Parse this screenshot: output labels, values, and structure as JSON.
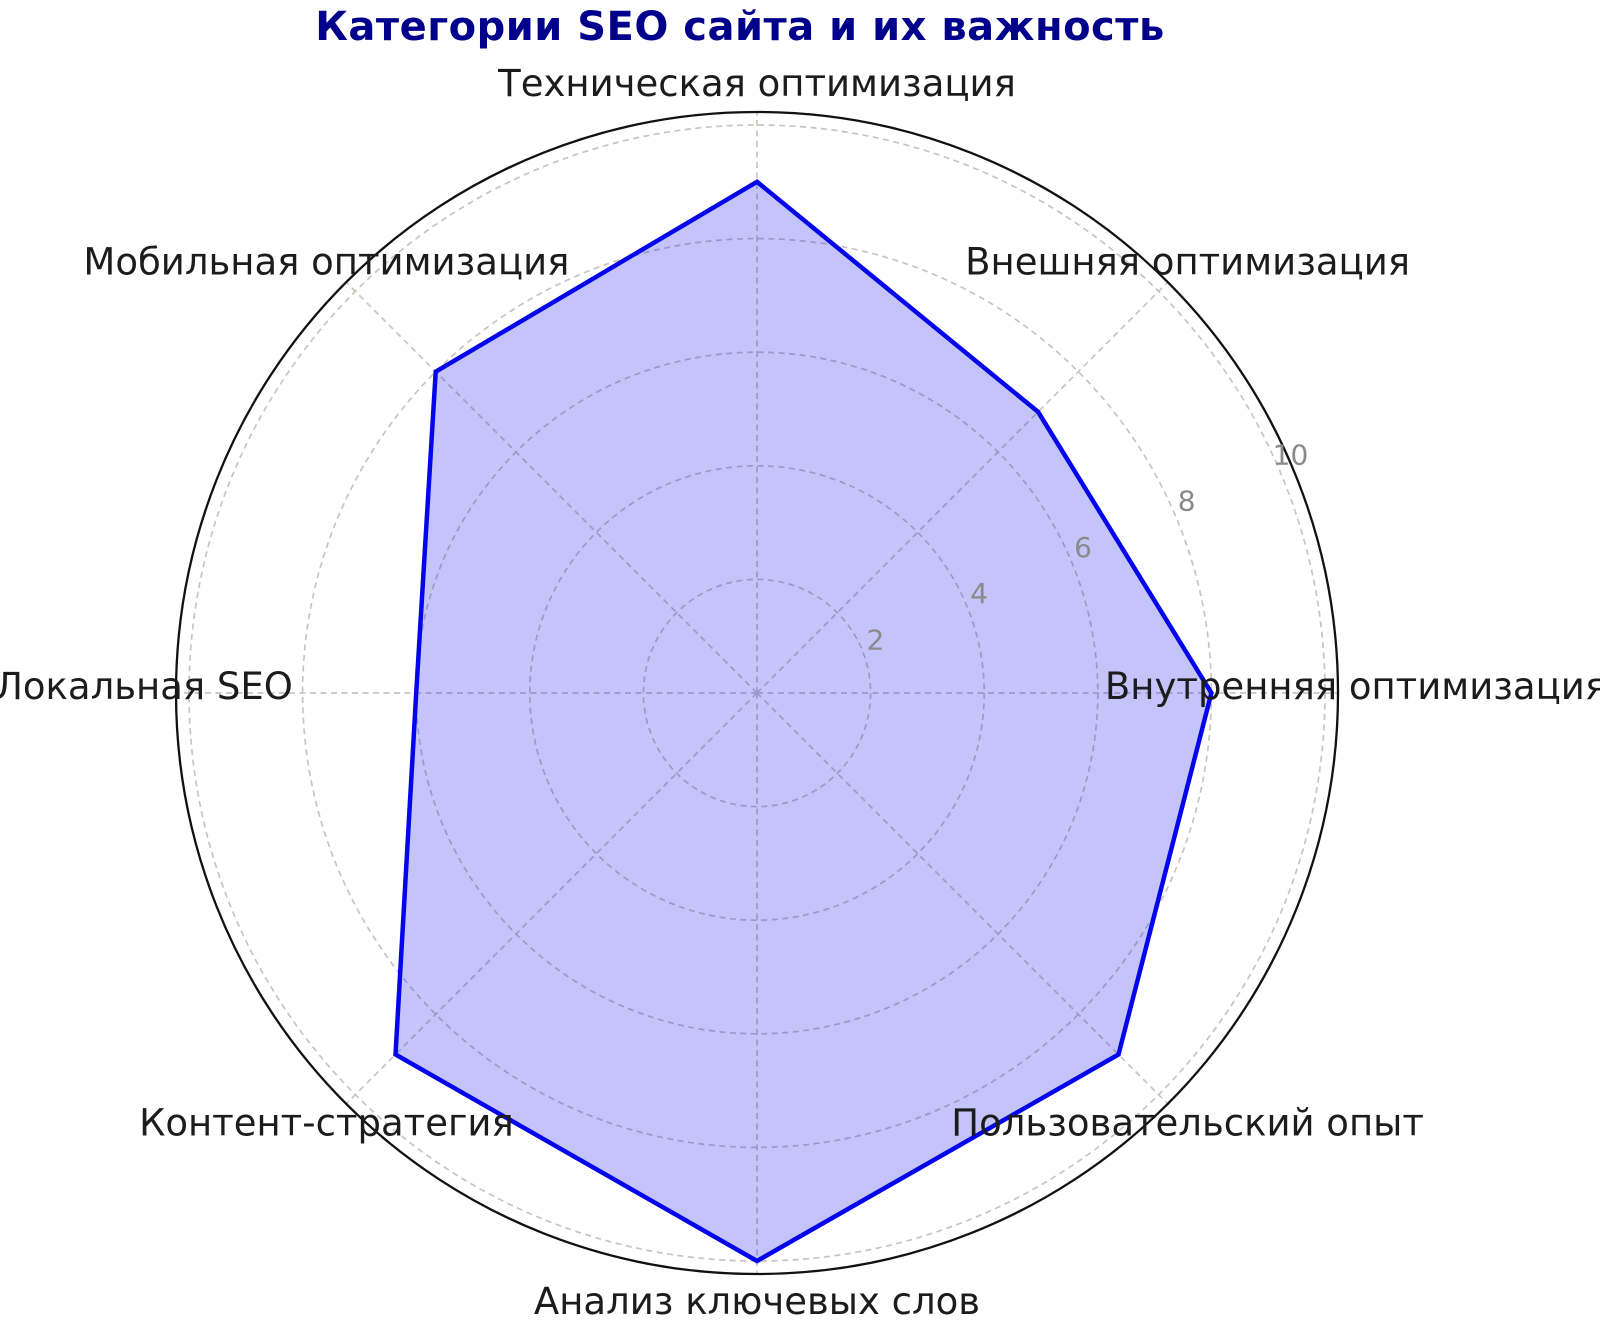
{
  "chart_data": {
    "type": "radar",
    "title": "Категории SEO сайта и их важность",
    "categories": [
      "Техническая оптимизация",
      "Внешняя оптимизация",
      "Внутренняя оптимизация",
      "Пользовательский опыт",
      "Анализ ключевых слов",
      "Контент-стратегия",
      "Локальная SEO",
      "Мобильная оптимизация"
    ],
    "values": [
      9,
      7,
      8,
      9,
      10,
      9,
      6,
      8
    ],
    "radial_ticks": [
      2,
      4,
      6,
      8,
      10
    ],
    "r_min": 0,
    "r_max": 10.25,
    "start_angle_deg": 90,
    "direction": "clockwise",
    "grid": "dashed",
    "legend": "none",
    "colors": {
      "title": "#00008B",
      "line": "#0505ec",
      "fill": "rgba(28,28,238,0.26)",
      "grid": "#c6c6c0",
      "outer_circle": "#111111",
      "tick_label": "#8a8a8a",
      "axis_label": "#1c1c1c"
    }
  }
}
